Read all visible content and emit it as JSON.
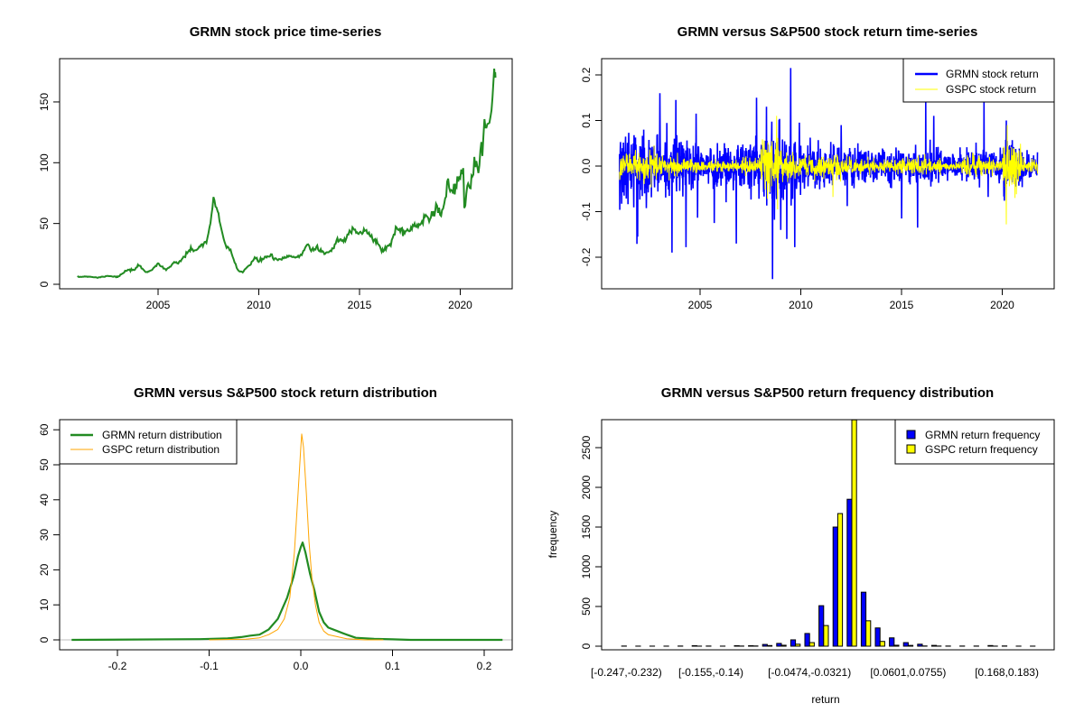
{
  "colors": {
    "price": "#228B22",
    "grmn_return": "#0000FF",
    "gspc_return": "#FFFF00",
    "grmn_density": "#228B22",
    "gspc_density": "#FFA500",
    "zero_line": "#BEBEBE"
  },
  "chart_data": [
    {
      "type": "line",
      "title": "GRMN stock price time-series",
      "xlabel": "",
      "ylabel": "",
      "xticks": [
        "2005",
        "2010",
        "2015",
        "2020"
      ],
      "yticks": [
        "0",
        "50",
        "100",
        "150"
      ],
      "xlim": [
        2000.2,
        2022.6
      ],
      "ylim": [
        0,
        180
      ],
      "series": [
        {
          "points": [
            [
              2001.0,
              6
            ],
            [
              2001.5,
              6.5
            ],
            [
              2002.0,
              5.5
            ],
            [
              2002.5,
              7
            ],
            [
              2003.0,
              6
            ],
            [
              2003.5,
              12
            ],
            [
              2003.8,
              11
            ],
            [
              2004.0,
              16
            ],
            [
              2004.4,
              10
            ],
            [
              2004.7,
              12
            ],
            [
              2005.0,
              17
            ],
            [
              2005.4,
              12
            ],
            [
              2005.8,
              17
            ],
            [
              2006.0,
              18
            ],
            [
              2006.3,
              22
            ],
            [
              2006.5,
              28
            ],
            [
              2006.8,
              27
            ],
            [
              2007.0,
              31
            ],
            [
              2007.4,
              34
            ],
            [
              2007.6,
              50
            ],
            [
              2007.75,
              73
            ],
            [
              2007.9,
              62
            ],
            [
              2008.0,
              58
            ],
            [
              2008.2,
              38
            ],
            [
              2008.4,
              30
            ],
            [
              2008.6,
              28
            ],
            [
              2008.8,
              18
            ],
            [
              2009.0,
              11
            ],
            [
              2009.2,
              10
            ],
            [
              2009.4,
              14
            ],
            [
              2009.6,
              16
            ],
            [
              2009.8,
              22
            ],
            [
              2010.0,
              19
            ],
            [
              2010.3,
              22
            ],
            [
              2010.6,
              24
            ],
            [
              2010.8,
              20
            ],
            [
              2011.0,
              20
            ],
            [
              2011.5,
              23
            ],
            [
              2012.0,
              22
            ],
            [
              2012.3,
              30
            ],
            [
              2012.45,
              34
            ],
            [
              2012.6,
              28
            ],
            [
              2012.9,
              30
            ],
            [
              2013.3,
              25
            ],
            [
              2013.6,
              28
            ],
            [
              2013.9,
              36
            ],
            [
              2014.3,
              36
            ],
            [
              2014.5,
              44
            ],
            [
              2014.7,
              47
            ],
            [
              2015.0,
              42
            ],
            [
              2015.3,
              44
            ],
            [
              2015.6,
              38
            ],
            [
              2015.9,
              35
            ],
            [
              2016.1,
              27
            ],
            [
              2016.4,
              31
            ],
            [
              2016.6,
              35
            ],
            [
              2016.8,
              46
            ],
            [
              2017.2,
              43
            ],
            [
              2017.6,
              46
            ],
            [
              2018.0,
              50
            ],
            [
              2018.2,
              56
            ],
            [
              2018.5,
              55
            ],
            [
              2018.8,
              63
            ],
            [
              2019.0,
              58
            ],
            [
              2019.2,
              65
            ],
            [
              2019.4,
              82
            ],
            [
              2019.6,
              75
            ],
            [
              2019.9,
              85
            ],
            [
              2020.05,
              95
            ],
            [
              2020.15,
              97
            ],
            [
              2020.2,
              64
            ],
            [
              2020.35,
              80
            ],
            [
              2020.6,
              95
            ],
            [
              2020.8,
              100
            ],
            [
              2020.9,
              93
            ],
            [
              2021.0,
              105
            ],
            [
              2021.15,
              120
            ],
            [
              2021.3,
              128
            ],
            [
              2021.45,
              140
            ],
            [
              2021.55,
              148
            ],
            [
              2021.65,
              170
            ],
            [
              2021.72,
              178
            ],
            [
              2021.75,
              170
            ]
          ]
        }
      ]
    },
    {
      "type": "line",
      "title": "GRMN versus S&P500 stock return time-series",
      "xticks": [
        "2005",
        "2010",
        "2015",
        "2020"
      ],
      "yticks": [
        "-0.2",
        "-0.1",
        "0.0",
        "0.1",
        "0.2"
      ],
      "xlim": [
        2000.2,
        2022.6
      ],
      "ylim": [
        -0.25,
        0.215
      ],
      "legend": {
        "position": "top-right"
      },
      "series": [
        {
          "name": "GRMN stock return",
          "volatility_by_year": {
            "2001": 0.04,
            "2002": 0.035,
            "2003": 0.03,
            "2004": 0.028,
            "2005": 0.022,
            "2006": 0.025,
            "2007": 0.03,
            "2008": 0.045,
            "2009": 0.035,
            "2010": 0.022,
            "2011": 0.02,
            "2012": 0.02,
            "2013": 0.018,
            "2014": 0.018,
            "2015": 0.018,
            "2016": 0.02,
            "2017": 0.015,
            "2018": 0.017,
            "2019": 0.017,
            "2020": 0.026,
            "2021": 0.013
          },
          "extremes": [
            [
              2001.9,
              -0.155
            ],
            [
              2002.2,
              0.08
            ],
            [
              2003.0,
              0.16
            ],
            [
              2003.6,
              -0.19
            ],
            [
              2003.8,
              0.145
            ],
            [
              2004.3,
              -0.178
            ],
            [
              2004.8,
              0.115
            ],
            [
              2005.7,
              -0.125
            ],
            [
              2006.8,
              -0.17
            ],
            [
              2007.8,
              0.15
            ],
            [
              2008.3,
              0.13
            ],
            [
              2008.6,
              -0.248
            ],
            [
              2009.0,
              -0.14
            ],
            [
              2009.3,
              -0.16
            ],
            [
              2009.5,
              0.215
            ],
            [
              2009.7,
              -0.178
            ],
            [
              2012.0,
              0.09
            ],
            [
              2012.3,
              -0.088
            ],
            [
              2015.0,
              -0.115
            ],
            [
              2015.8,
              -0.135
            ],
            [
              2016.2,
              0.14
            ],
            [
              2016.6,
              0.11
            ],
            [
              2019.1,
              0.14
            ],
            [
              2019.3,
              -0.068
            ],
            [
              2020.2,
              -0.1
            ],
            [
              2020.2,
              0.1
            ]
          ]
        },
        {
          "name": "GSPC stock return",
          "volatility_by_year": {
            "2001": 0.014,
            "2002": 0.016,
            "2003": 0.01,
            "2004": 0.007,
            "2005": 0.006,
            "2006": 0.006,
            "2007": 0.01,
            "2008": 0.028,
            "2009": 0.017,
            "2010": 0.011,
            "2011": 0.014,
            "2012": 0.008,
            "2013": 0.007,
            "2014": 0.007,
            "2015": 0.009,
            "2016": 0.008,
            "2017": 0.004,
            "2018": 0.011,
            "2019": 0.008,
            "2020": 0.022,
            "2021": 0.008
          },
          "extremes": [
            [
              2008.8,
              0.11
            ],
            [
              2008.85,
              -0.095
            ],
            [
              2011.6,
              -0.068
            ],
            [
              2020.2,
              -0.128
            ],
            [
              2020.25,
              0.09
            ]
          ]
        }
      ]
    },
    {
      "type": "line",
      "title": "GRMN versus S&P500 stock return distribution",
      "xticks": [
        "-0.2",
        "-0.1",
        "0.0",
        "0.1",
        "0.2"
      ],
      "yticks": [
        "0",
        "10",
        "20",
        "30",
        "40",
        "50",
        "60"
      ],
      "xlim": [
        -0.26,
        0.235
      ],
      "ylim": [
        0,
        61
      ],
      "legend": {
        "position": "top-left"
      },
      "series": [
        {
          "name": "GRMN return distribution",
          "points": [
            [
              -0.25,
              0
            ],
            [
              -0.11,
              0.2
            ],
            [
              -0.08,
              0.4
            ],
            [
              -0.065,
              0.8
            ],
            [
              -0.055,
              1.2
            ],
            [
              -0.045,
              1.5
            ],
            [
              -0.035,
              3
            ],
            [
              -0.025,
              6
            ],
            [
              -0.015,
              12
            ],
            [
              -0.008,
              18
            ],
            [
              -0.003,
              24
            ],
            [
              0.0,
              26.5
            ],
            [
              0.002,
              27.8
            ],
            [
              0.005,
              25
            ],
            [
              0.01,
              19
            ],
            [
              0.015,
              14
            ],
            [
              0.02,
              8
            ],
            [
              0.025,
              5
            ],
            [
              0.03,
              3.5
            ],
            [
              0.04,
              2.5
            ],
            [
              0.05,
              1.5
            ],
            [
              0.06,
              0.6
            ],
            [
              0.08,
              0.3
            ],
            [
              0.1,
              0.15
            ],
            [
              0.12,
              0
            ],
            [
              0.22,
              0
            ]
          ]
        },
        {
          "name": "GSPC return distribution",
          "points": [
            [
              -0.1,
              0
            ],
            [
              -0.06,
              0.2
            ],
            [
              -0.045,
              0.6
            ],
            [
              -0.035,
              1.5
            ],
            [
              -0.025,
              3
            ],
            [
              -0.018,
              6
            ],
            [
              -0.012,
              12
            ],
            [
              -0.007,
              25
            ],
            [
              -0.003,
              42
            ],
            [
              0.0,
              55
            ],
            [
              0.001,
              58.8
            ],
            [
              0.003,
              55
            ],
            [
              0.006,
              42
            ],
            [
              0.009,
              28
            ],
            [
              0.012,
              18
            ],
            [
              0.016,
              10
            ],
            [
              0.02,
              5
            ],
            [
              0.025,
              2.5
            ],
            [
              0.03,
              1.5
            ],
            [
              0.04,
              0.9
            ],
            [
              0.05,
              0.3
            ],
            [
              0.07,
              0
            ],
            [
              0.09,
              0
            ]
          ]
        }
      ]
    },
    {
      "type": "bar",
      "title": "GRMN versus S&P500 return frequency distribution",
      "xlabel": "return",
      "ylabel": "frequency",
      "yticks": [
        "0",
        "500",
        "1000",
        "1500",
        "2000",
        "2500"
      ],
      "ylim": [
        0,
        2850
      ],
      "xtick_labels": [
        {
          "bin": 1,
          "label": "[-0.247,-0.232)"
        },
        {
          "bin": 7,
          "label": "[-0.155,-0.14)"
        },
        {
          "bin": 14,
          "label": "[-0.0474,-0.0321)"
        },
        {
          "bin": 21,
          "label": "[0.0601,0.0755)"
        },
        {
          "bin": 28,
          "label": "[0.168,0.183)"
        }
      ],
      "legend": {
        "position": "top-right"
      },
      "series": [
        {
          "name": "GRMN return frequency",
          "values": [
            2,
            1,
            1,
            1,
            2,
            6,
            2,
            1,
            6,
            6,
            22,
            35,
            80,
            160,
            510,
            1500,
            1850,
            680,
            230,
            105,
            45,
            25,
            10,
            2,
            2,
            2,
            8,
            3,
            1,
            1
          ]
        },
        {
          "name": "GSPC return frequency",
          "values": [
            0,
            0,
            0,
            0,
            0,
            1,
            0,
            0,
            2,
            3,
            8,
            12,
            25,
            45,
            260,
            1670,
            3050,
            320,
            60,
            12,
            10,
            3,
            2,
            0,
            0,
            0,
            1,
            0,
            0,
            0
          ]
        }
      ]
    }
  ]
}
